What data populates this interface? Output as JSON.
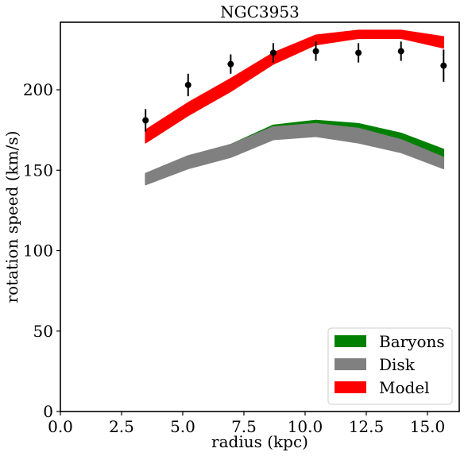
{
  "chart_data": {
    "type": "line",
    "title": "NGC3953",
    "xlabel": "radius (kpc)",
    "ylabel": "rotation speed (km/s)",
    "xlim": [
      0,
      16.3
    ],
    "ylim": [
      0,
      242
    ],
    "xticks": [
      0,
      2.5,
      5,
      7.5,
      10,
      12.5,
      15
    ],
    "xtick_labels": [
      "0.0",
      "2.5",
      "5.0",
      "7.5",
      "10.0",
      "12.5",
      "15.0"
    ],
    "yticks": [
      0,
      50,
      100,
      150,
      200
    ],
    "ytick_labels": [
      "0",
      "50",
      "100",
      "150",
      "200"
    ],
    "grid": false,
    "legend_position": "lower-right",
    "x": [
      3.48,
      5.22,
      6.96,
      8.7,
      10.44,
      12.18,
      13.92,
      15.66
    ],
    "observed": {
      "values": [
        181,
        203,
        216,
        223,
        224,
        223,
        224,
        215
      ],
      "errors": [
        7,
        7,
        6,
        6,
        6,
        6,
        6,
        10
      ],
      "color": "#000000"
    },
    "series": [
      {
        "name": "Baryons",
        "color": "#008000",
        "lower": [
          143,
          154,
          161,
          171,
          173,
          171,
          166,
          156
        ],
        "upper": [
          147,
          158,
          166,
          178,
          181,
          179,
          173,
          163
        ]
      },
      {
        "name": "Disk",
        "color": "#808080",
        "lower": [
          141,
          151,
          158,
          169,
          171,
          167,
          161,
          151
        ],
        "upper": [
          148,
          159,
          166,
          177,
          179,
          176,
          169,
          158
        ]
      },
      {
        "name": "Model",
        "color": "#ff0000",
        "lower": [
          167,
          184,
          199,
          216,
          228,
          232,
          232,
          226
        ],
        "upper": [
          175,
          192,
          207,
          223,
          234,
          237,
          237,
          233
        ]
      }
    ],
    "legend": [
      "Baryons",
      "Disk",
      "Model"
    ]
  }
}
